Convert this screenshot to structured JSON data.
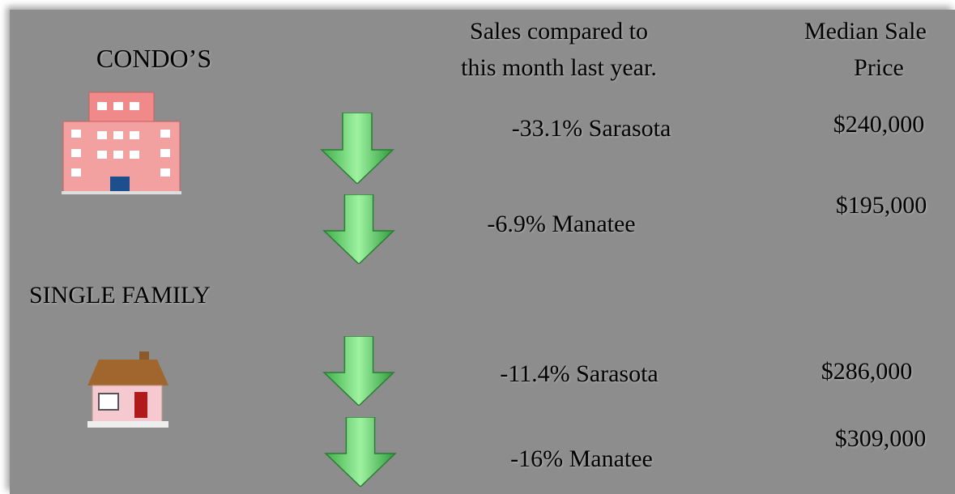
{
  "condo_label": "CONDO’S",
  "single_family_label": "SINGLE FAMILY",
  "columns": {
    "sales_change": [
      "Sales compared to",
      "this month last year."
    ],
    "median_price": [
      "Median Sale",
      "Price"
    ]
  },
  "rows": [
    {
      "change": "-33.1% Sarasota",
      "price": "$240,000"
    },
    {
      "change": "-6.9% Manatee",
      "price": "$195,000"
    },
    {
      "change": "-11.4% Sarasota",
      "price": "$286,000"
    },
    {
      "change": "-16% Manatee",
      "price": "$309,000"
    }
  ]
}
